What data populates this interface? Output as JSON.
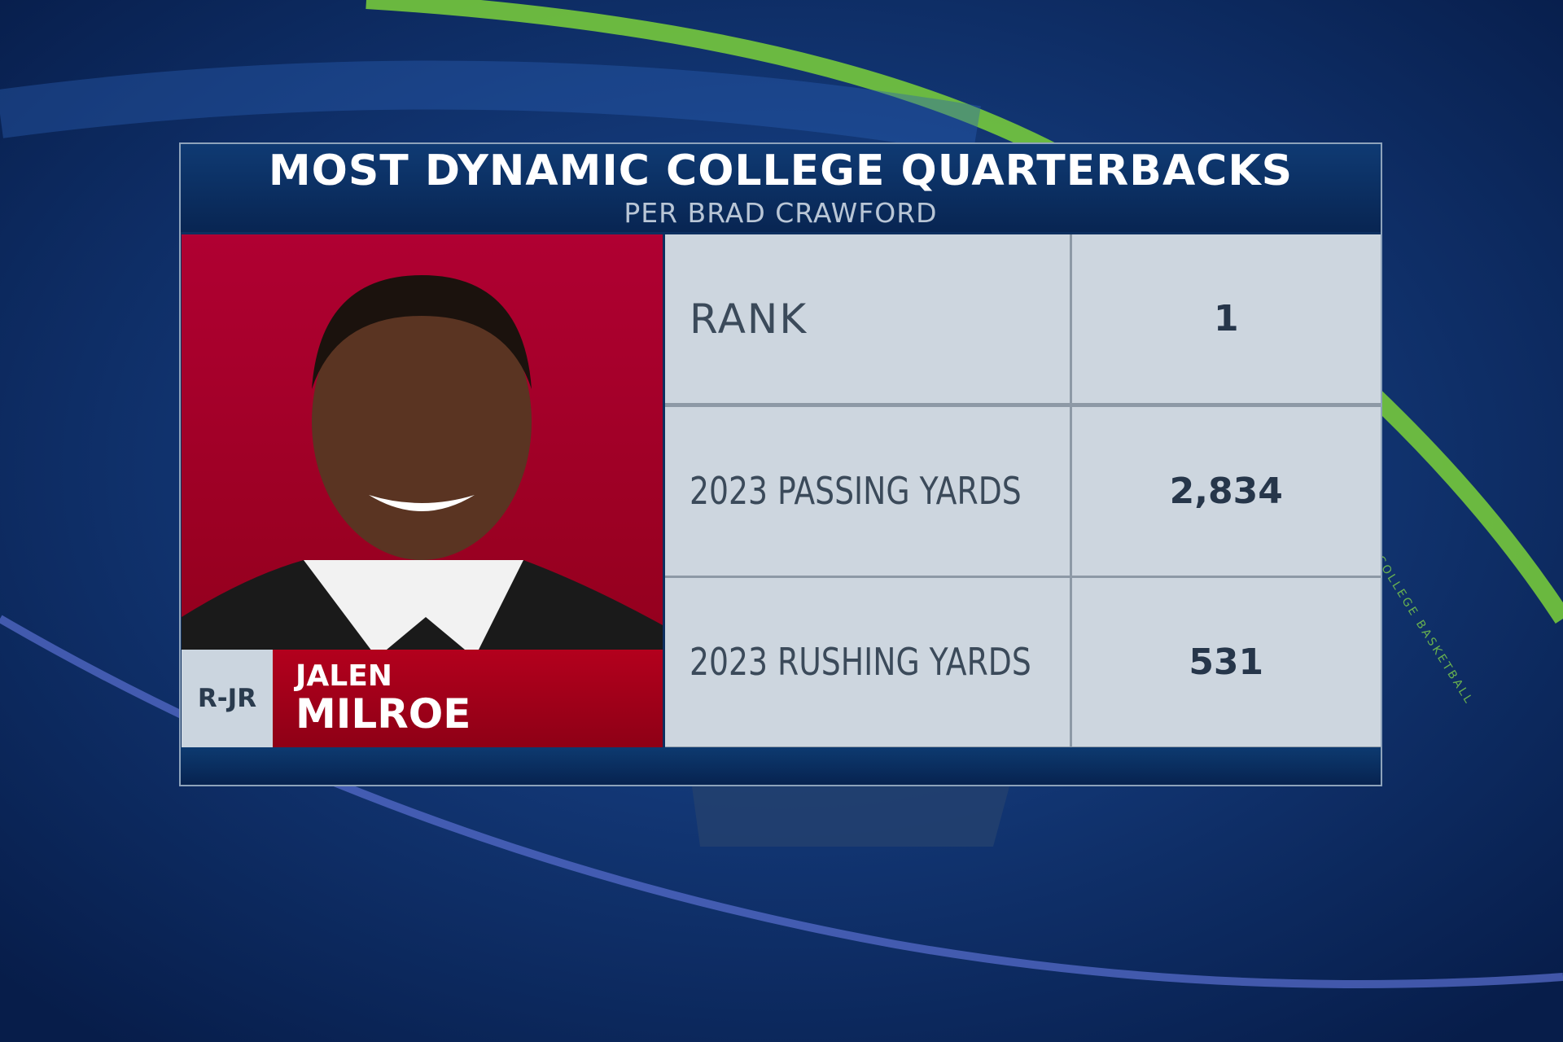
{
  "header": {
    "title": "MOST DYNAMIC COLLEGE QUARTERBACKS",
    "subtitle": "PER BRAD CRAWFORD"
  },
  "player": {
    "class": "R-JR",
    "first_name": "JALEN",
    "last_name": "MILROE"
  },
  "table": {
    "rows": [
      [
        "RANK",
        "1"
      ],
      [
        "2023 PASSING YARDS",
        "2,834"
      ],
      [
        "2023 RUSHING YARDS",
        "531"
      ]
    ]
  },
  "background": {
    "watermark": "COLLEGE BASKETBALL"
  }
}
